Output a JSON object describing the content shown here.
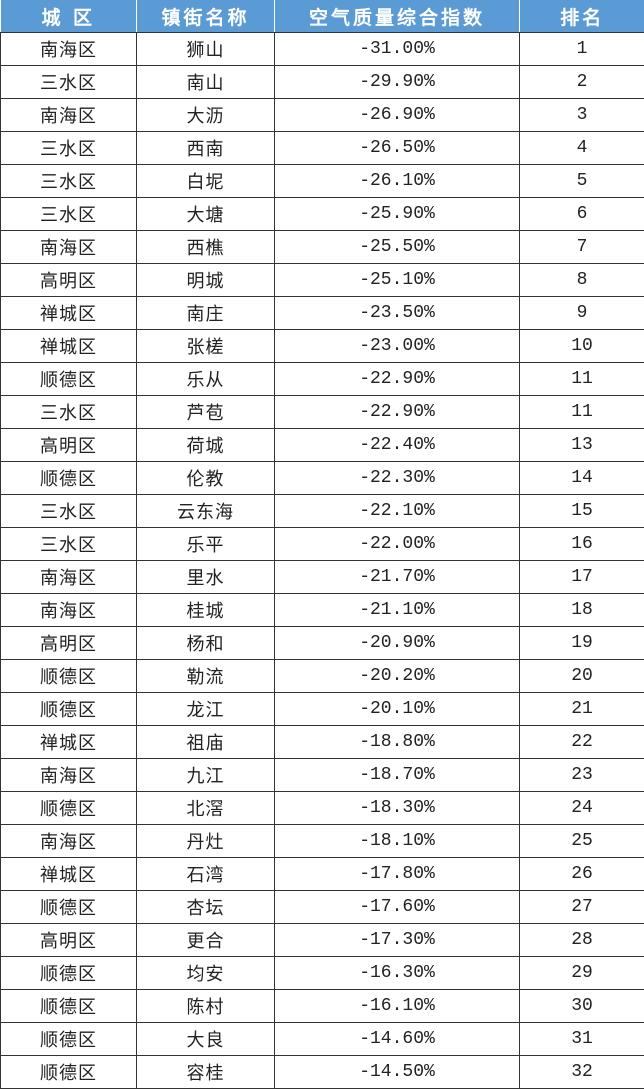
{
  "header_color": "#5b9bd5",
  "columns": [
    "城 区",
    "镇街名称",
    "空气质量综合指数",
    "排名"
  ],
  "rows": [
    [
      "南海区",
      "狮山",
      "-31.00%",
      "1"
    ],
    [
      "三水区",
      "南山",
      "-29.90%",
      "2"
    ],
    [
      "南海区",
      "大沥",
      "-26.90%",
      "3"
    ],
    [
      "三水区",
      "西南",
      "-26.50%",
      "4"
    ],
    [
      "三水区",
      "白坭",
      "-26.10%",
      "5"
    ],
    [
      "三水区",
      "大塘",
      "-25.90%",
      "6"
    ],
    [
      "南海区",
      "西樵",
      "-25.50%",
      "7"
    ],
    [
      "高明区",
      "明城",
      "-25.10%",
      "8"
    ],
    [
      "禅城区",
      "南庄",
      "-23.50%",
      "9"
    ],
    [
      "禅城区",
      "张槎",
      "-23.00%",
      "10"
    ],
    [
      "顺德区",
      "乐从",
      "-22.90%",
      "11"
    ],
    [
      "三水区",
      "芦苞",
      "-22.90%",
      "11"
    ],
    [
      "高明区",
      "荷城",
      "-22.40%",
      "13"
    ],
    [
      "顺德区",
      "伦教",
      "-22.30%",
      "14"
    ],
    [
      "三水区",
      "云东海",
      "-22.10%",
      "15"
    ],
    [
      "三水区",
      "乐平",
      "-22.00%",
      "16"
    ],
    [
      "南海区",
      "里水",
      "-21.70%",
      "17"
    ],
    [
      "南海区",
      "桂城",
      "-21.10%",
      "18"
    ],
    [
      "高明区",
      "杨和",
      "-20.90%",
      "19"
    ],
    [
      "顺德区",
      "勒流",
      "-20.20%",
      "20"
    ],
    [
      "顺德区",
      "龙江",
      "-20.10%",
      "21"
    ],
    [
      "禅城区",
      "祖庙",
      "-18.80%",
      "22"
    ],
    [
      "南海区",
      "九江",
      "-18.70%",
      "23"
    ],
    [
      "顺德区",
      "北滘",
      "-18.30%",
      "24"
    ],
    [
      "南海区",
      "丹灶",
      "-18.10%",
      "25"
    ],
    [
      "禅城区",
      "石湾",
      "-17.80%",
      "26"
    ],
    [
      "顺德区",
      "杏坛",
      "-17.60%",
      "27"
    ],
    [
      "高明区",
      "更合",
      "-17.30%",
      "28"
    ],
    [
      "顺德区",
      "均安",
      "-16.30%",
      "29"
    ],
    [
      "顺德区",
      "陈村",
      "-16.10%",
      "30"
    ],
    [
      "顺德区",
      "大良",
      "-14.60%",
      "31"
    ],
    [
      "顺德区",
      "容桂",
      "-14.50%",
      "32"
    ]
  ]
}
